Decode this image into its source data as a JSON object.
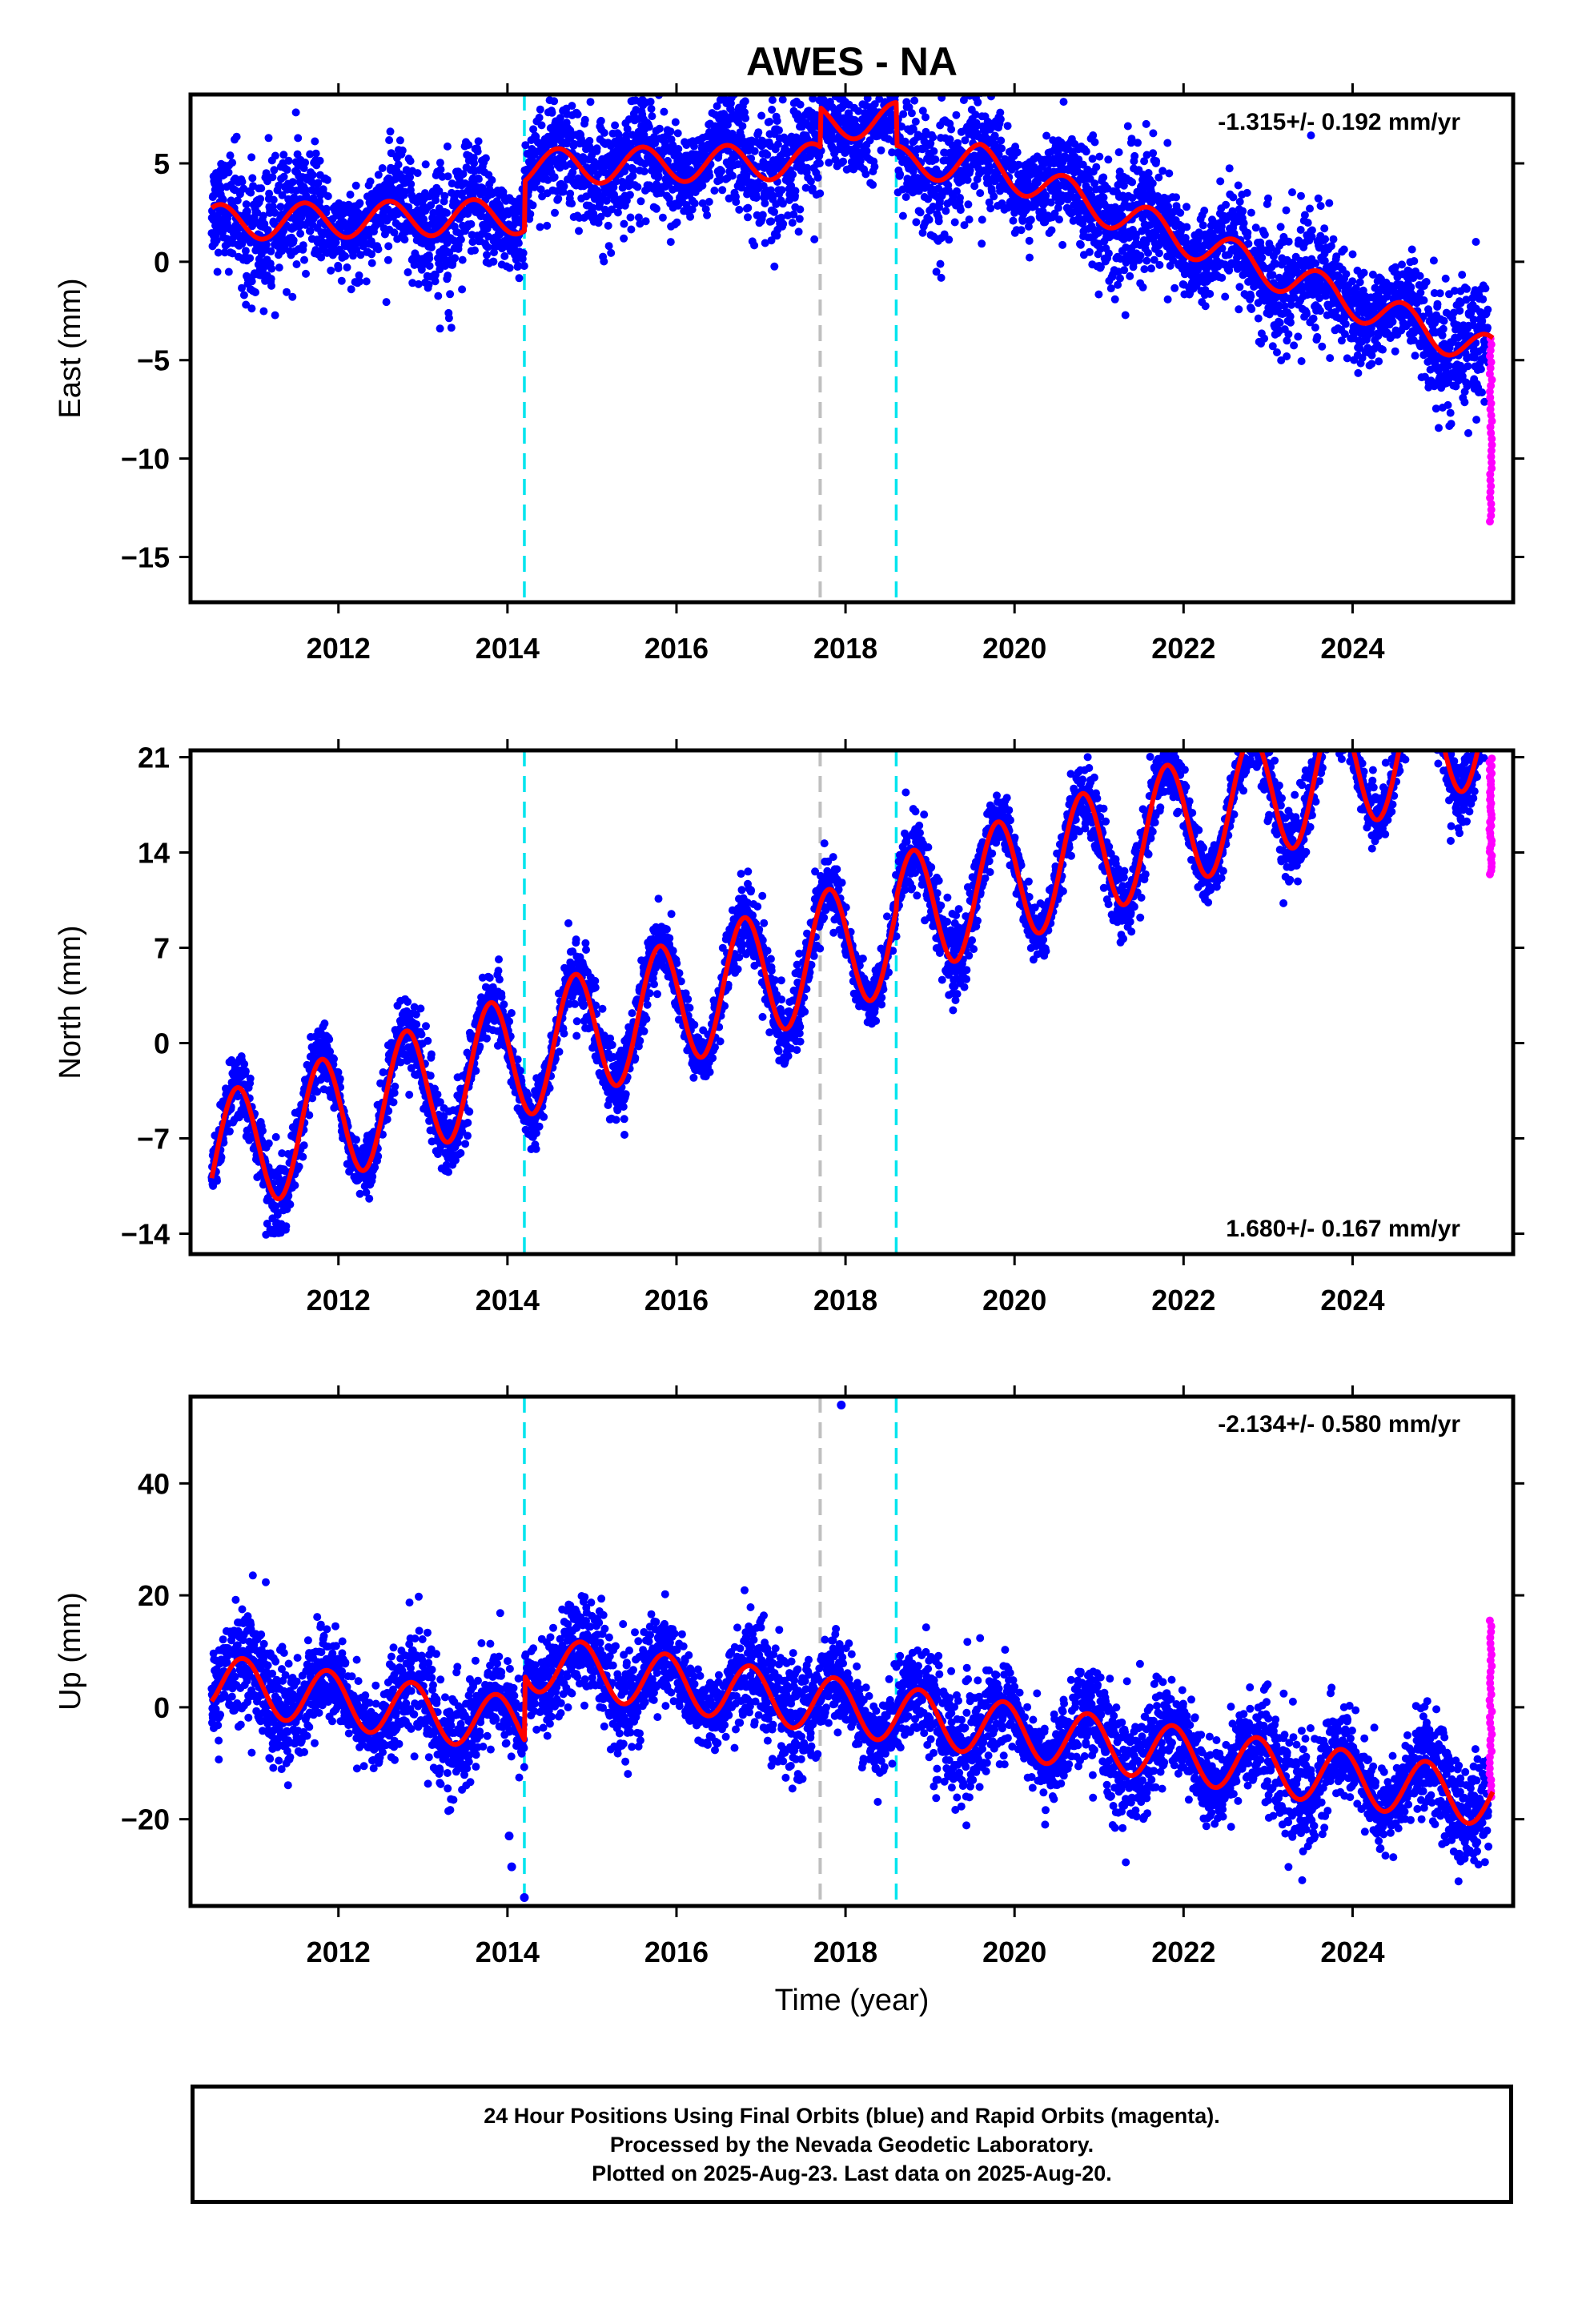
{
  "title": "AWES - NA",
  "x_axis": {
    "label": "Time (year)",
    "range": [
      2010.25,
      2025.9
    ],
    "ticks": [
      "2012",
      "2014",
      "2016",
      "2018",
      "2020",
      "2022",
      "2024"
    ]
  },
  "caption": {
    "line1": "24 Hour Positions Using Final Orbits (blue) and Rapid Orbits (magenta).",
    "line2": "Processed by the Nevada Geodetic Laboratory.",
    "line3": "Plotted on 2025-Aug-23. Last data on 2025-Aug-20."
  },
  "colors": {
    "final_orbits": "#0000ff",
    "rapid_orbits": "#ff00ff",
    "model": "#ff0000",
    "equipment_change": "#00e5ee",
    "other_event": "#bfbfbf"
  },
  "chart_data": [
    {
      "type": "scatter",
      "panel": "east",
      "ylabel": "East (mm)",
      "ylim": [
        -17.3,
        8.5
      ],
      "yticks": [
        "5",
        "0",
        "−5",
        "−10",
        "−15"
      ],
      "rate_text": "-1.315+/- 0.192 mm/yr",
      "rate_position": "top-right",
      "events": [
        {
          "year": 2014.2,
          "kind": "equipment_change"
        },
        {
          "year": 2017.7,
          "kind": "other_event"
        },
        {
          "year": 2018.6,
          "kind": "equipment_change"
        }
      ],
      "model": {
        "offset": 2.0,
        "rate": -1.315,
        "amplitude": 0.9,
        "phase_year": 0.35,
        "steps": [
          {
            "year": 2014.2,
            "value": 2.5
          },
          {
            "year": 2017.7,
            "value": 2.0
          },
          {
            "year": 2018.6,
            "value": -2.2
          }
        ],
        "drift": [
          {
            "from": 2010.5,
            "to": 2019.6,
            "value": 1.4
          },
          {
            "from": 2019.6,
            "to": 2025.7,
            "value": -0.3
          }
        ]
      },
      "scatter_sd": 1.35,
      "rapid_points": {
        "from": 2025.62,
        "to": 2025.65,
        "range": [
          -13.2,
          -3.9
        ]
      }
    },
    {
      "type": "scatter",
      "panel": "north",
      "ylabel": "North (mm)",
      "ylim": [
        -15.5,
        21.5
      ],
      "yticks": [
        "21",
        "14",
        "7",
        "0",
        "−7",
        "−14"
      ],
      "rate_text": "1.680+/- 0.167 mm/yr",
      "rate_position": "bottom-right",
      "events": [
        {
          "year": 2014.2,
          "kind": "equipment_change"
        },
        {
          "year": 2017.7,
          "kind": "other_event"
        },
        {
          "year": 2018.6,
          "kind": "equipment_change"
        }
      ],
      "model": {
        "offset": -8.5,
        "rate": 1.68,
        "amplitude": 4.6,
        "phase_year": 0.55,
        "steps": [
          {
            "year": 2018.6,
            "value": 0.8
          }
        ],
        "drift": [
          {
            "from": 2010.5,
            "to": 2025.7,
            "value": 0.4
          }
        ]
      },
      "scatter_sd": 1.2,
      "rapid_points": {
        "from": 2025.62,
        "to": 2025.65,
        "range": [
          12.4,
          20.9
        ]
      }
    },
    {
      "type": "scatter",
      "panel": "up",
      "ylabel": "Up (mm)",
      "ylim": [
        -35.5,
        55.5
      ],
      "yticks": [
        "40",
        "20",
        "0",
        "−20"
      ],
      "rate_text": "-2.134+/- 0.580 mm/yr",
      "rate_position": "top-right",
      "events": [
        {
          "year": 2014.2,
          "kind": "equipment_change"
        },
        {
          "year": 2017.7,
          "kind": "other_event"
        },
        {
          "year": 2018.6,
          "kind": "equipment_change"
        }
      ],
      "model": {
        "offset": 4.5,
        "rate": -2.134,
        "amplitude": 5.0,
        "phase_year": 0.62,
        "steps": [
          {
            "year": 2014.2,
            "value": 11.5
          }
        ],
        "drift": []
      },
      "scatter_sd": 4.2,
      "outliers": [
        {
          "year": 2017.95,
          "value": 54.0
        },
        {
          "year": 2014.2,
          "value": -34.0
        },
        {
          "year": 2014.05,
          "value": -28.5
        },
        {
          "year": 2014.02,
          "value": -23.0
        }
      ],
      "rapid_points": {
        "from": 2025.62,
        "to": 2025.65,
        "range": [
          -16.0,
          15.5
        ]
      }
    }
  ]
}
